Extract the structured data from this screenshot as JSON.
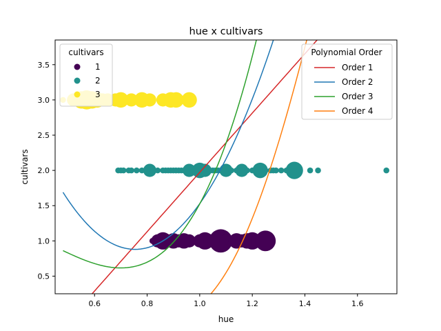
{
  "chart_data": {
    "type": "scatter",
    "title": "hue x cultivars",
    "xlabel": "hue",
    "ylabel": "cultivars",
    "xlim": [
      0.45,
      1.75
    ],
    "ylim": [
      0.25,
      3.85
    ],
    "xticks": [
      {
        "value": 0.6,
        "label": "0.6"
      },
      {
        "value": 0.8,
        "label": "0.8"
      },
      {
        "value": 1.0,
        "label": "1.0"
      },
      {
        "value": 1.2,
        "label": "1.2"
      },
      {
        "value": 1.4,
        "label": "1.4"
      },
      {
        "value": 1.6,
        "label": "1.6"
      }
    ],
    "yticks": [
      {
        "value": 0.5,
        "label": "0.5"
      },
      {
        "value": 1.0,
        "label": "1.0"
      },
      {
        "value": 1.5,
        "label": "1.5"
      },
      {
        "value": 2.0,
        "label": "2.0"
      },
      {
        "value": 2.5,
        "label": "2.5"
      },
      {
        "value": 3.0,
        "label": "3.0"
      },
      {
        "value": 3.5,
        "label": "3.5"
      }
    ],
    "grid": false,
    "scatter_series": [
      {
        "name": "1",
        "color": "#440154",
        "y": 1.0,
        "x": [
          0.82,
          0.84,
          0.86,
          0.88,
          0.9,
          0.92,
          0.94,
          0.96,
          0.98,
          1.0,
          1.02,
          1.04,
          1.06,
          1.08,
          1.1,
          1.12,
          1.14,
          1.16,
          1.18,
          1.2,
          1.22,
          1.25
        ],
        "size": [
          1,
          2,
          4,
          2,
          3,
          2,
          3,
          2,
          1,
          2,
          4,
          2,
          3,
          8,
          2,
          1,
          3,
          2,
          3,
          4,
          2,
          6
        ]
      },
      {
        "name": "2",
        "color": "#21918c",
        "y": 2.0,
        "x": [
          0.69,
          0.7,
          0.71,
          0.73,
          0.74,
          0.76,
          0.78,
          0.8,
          0.81,
          0.82,
          0.84,
          0.86,
          0.87,
          0.88,
          0.89,
          0.9,
          0.91,
          0.92,
          0.93,
          0.94,
          0.95,
          0.96,
          0.97,
          0.98,
          0.99,
          1.0,
          1.02,
          1.03,
          1.04,
          1.05,
          1.06,
          1.07,
          1.08,
          1.1,
          1.12,
          1.14,
          1.16,
          1.18,
          1.2,
          1.23,
          1.25,
          1.27,
          1.28,
          1.29,
          1.31,
          1.33,
          1.36,
          1.38,
          1.42,
          1.45,
          1.71
        ],
        "size": [
          1,
          1,
          1,
          1,
          1,
          1,
          1,
          1,
          2,
          1,
          1,
          1,
          1,
          1,
          1,
          1,
          1,
          1,
          1,
          1,
          1,
          2,
          1,
          1,
          1,
          3,
          2,
          1,
          1,
          1,
          1,
          1,
          1,
          2,
          1,
          1,
          2,
          1,
          1,
          3,
          1,
          1,
          1,
          1,
          1,
          1,
          4,
          1,
          1,
          1,
          1
        ]
      },
      {
        "name": "3",
        "color": "#fde725",
        "y": 3.0,
        "x": [
          0.48,
          0.52,
          0.55,
          0.57,
          0.59,
          0.61,
          0.63,
          0.65,
          0.68,
          0.7,
          0.74,
          0.78,
          0.81,
          0.86,
          0.89,
          0.91,
          0.96
        ],
        "size": [
          1,
          2,
          4,
          5,
          4,
          3,
          2,
          2,
          2,
          3,
          2,
          3,
          2,
          2,
          3,
          3,
          3
        ]
      }
    ],
    "fit_lines": [
      {
        "name": "Order 1",
        "color": "#d62728",
        "coef": [
          4.2069,
          -2.235
        ],
        "x_range": [
          0.48,
          1.71
        ]
      },
      {
        "name": "Order 2",
        "color": "#1f77b4",
        "coef": [
          10.744,
          -16.211,
          6.9953
        ],
        "x_range": [
          0.48,
          1.7
        ]
      },
      {
        "name": "Order 3",
        "color": "#2ca02c",
        "coef": [
          9.6283,
          -13.021,
          4.078,
          0.8395
        ],
        "x_range": [
          0.48,
          1.7
        ]
      },
      {
        "name": "Order 4",
        "color": "#ff7f0e",
        "coef": [
          -15.745,
          71.52,
          -105.82,
          63.13,
          -12.993
        ],
        "x_range": [
          0.48,
          1.7
        ]
      }
    ],
    "legend_cultivars": {
      "title": "cultivars",
      "placement": "top-left",
      "entries": [
        {
          "label": "1",
          "color": "#440154"
        },
        {
          "label": "2",
          "color": "#21918c"
        },
        {
          "label": "3",
          "color": "#fde725"
        }
      ]
    },
    "legend_fits": {
      "title": "Polynomial Order",
      "placement": "top-right"
    }
  }
}
